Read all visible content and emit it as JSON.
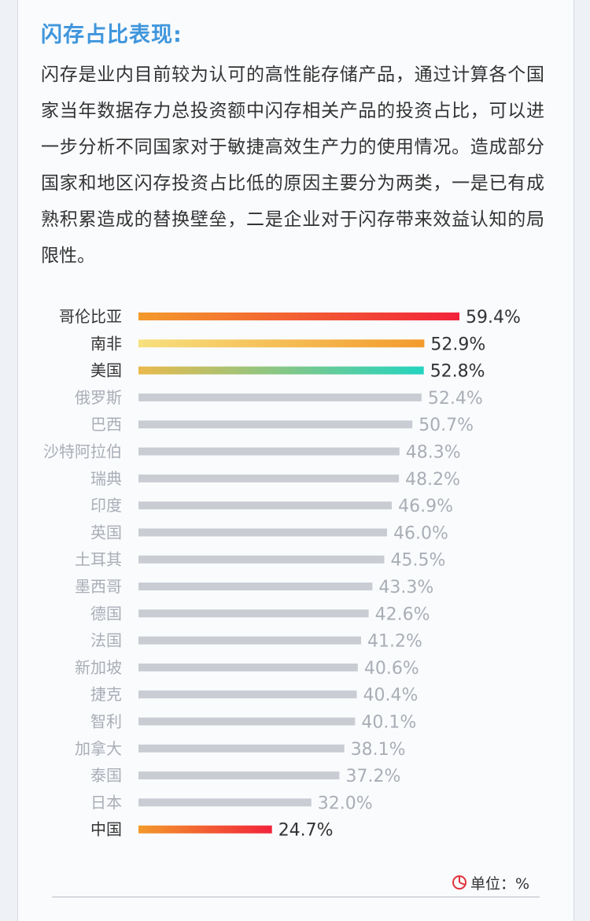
{
  "section": {
    "title": "闪存占比表现:",
    "body": "闪存是业内目前较为认可的高性能存储产品，通过计算各个国家当年数据存力总投资额中闪存相关产品的投资占比，可以进一步分析不同国家对于敏捷高效生产力的使用情况。造成部分国家和地区闪存投资占比低的原因主要分为两类，一是已有成熟积累造成的替换壁垒，二是企业对于闪存带来效益认知的局限性。"
  },
  "unit_label": "单位：%",
  "unit_icon": "pie-chart-icon",
  "colors": {
    "title": "#3f96dc",
    "bar_default": "#c9cdd3",
    "label_default": "#a9aeb6",
    "label_highlight": "#333333",
    "value_default": "#a9aeb6",
    "value_highlight": "#333333"
  },
  "chart_data": {
    "type": "bar",
    "orientation": "horizontal",
    "categories": [
      "哥伦比亚",
      "南非",
      "美国",
      "俄罗斯",
      "巴西",
      "沙特阿拉伯",
      "瑞典",
      "印度",
      "英国",
      "土耳其",
      "墨西哥",
      "德国",
      "法国",
      "新加坡",
      "捷克",
      "智利",
      "加拿大",
      "泰国",
      "日本",
      "中国"
    ],
    "values": [
      59.4,
      52.9,
      52.8,
      52.4,
      50.7,
      48.3,
      48.2,
      46.9,
      46.0,
      45.5,
      43.3,
      42.6,
      41.2,
      40.6,
      40.4,
      40.1,
      38.1,
      37.2,
      32.0,
      24.7
    ],
    "value_labels": [
      "59.4%",
      "52.9%",
      "52.8%",
      "52.4%",
      "50.7%",
      "48.3%",
      "48.2%",
      "46.9%",
      "46.0%",
      "45.5%",
      "43.3%",
      "42.6%",
      "41.2%",
      "40.6%",
      "40.4%",
      "40.1%",
      "38.1%",
      "37.2%",
      "32.0%",
      "24.7%"
    ],
    "highlighted": [
      {
        "category": "哥伦比亚",
        "gradient": [
          "#f39a2c",
          "#f2233a"
        ]
      },
      {
        "category": "南非",
        "gradient": [
          "#f7e07e",
          "#f39a2c"
        ]
      },
      {
        "category": "美国",
        "gradient": [
          "#eab94c",
          "#22d4c0"
        ]
      },
      {
        "category": "中国",
        "gradient": [
          "#f39a2c",
          "#f2233a"
        ]
      }
    ],
    "xlim": [
      0,
      59.4
    ],
    "grid": false,
    "legend": "none"
  }
}
